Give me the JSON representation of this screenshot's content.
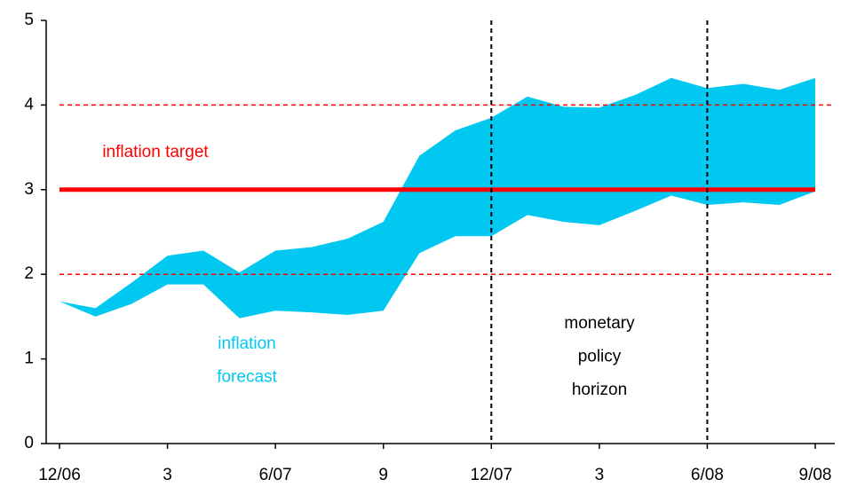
{
  "chart_data": {
    "type": "band",
    "categories": [
      "12/06",
      null,
      null,
      "3",
      null,
      null,
      "6/07",
      null,
      null,
      "9",
      null,
      null,
      "12/07",
      null,
      null,
      "3",
      null,
      null,
      "6/08",
      null,
      null,
      "9/08"
    ],
    "band": {
      "color": "#00c8f0",
      "upper": [
        1.68,
        1.6,
        1.9,
        2.22,
        2.28,
        2.02,
        2.28,
        2.32,
        2.42,
        2.62,
        3.4,
        3.7,
        3.85,
        4.1,
        3.98,
        3.97,
        4.12,
        4.32,
        4.2,
        4.25,
        4.18,
        4.32
      ],
      "lower": [
        1.68,
        1.5,
        1.65,
        1.88,
        1.88,
        1.48,
        1.57,
        1.55,
        1.52,
        1.57,
        2.25,
        2.45,
        2.45,
        2.7,
        2.62,
        2.58,
        2.75,
        2.93,
        2.82,
        2.85,
        2.82,
        2.98
      ]
    },
    "ylim": [
      0,
      5
    ],
    "yticks": [
      0,
      1,
      2,
      3,
      4,
      5
    ],
    "hlines": [
      {
        "value": 3,
        "color": "#ff0000",
        "style": "solid"
      },
      {
        "value": 2,
        "color": "#ff0000",
        "style": "dashed"
      },
      {
        "value": 4,
        "color": "#ff0000",
        "style": "dashed"
      }
    ],
    "vlines": [
      {
        "category": "12/07",
        "color": "#000000",
        "style": "dashed"
      },
      {
        "category": "6/08",
        "color": "#000000",
        "style": "dashed"
      }
    ],
    "annotations": [
      {
        "lines": [
          "inflation target"
        ],
        "color": "#ff0000"
      },
      {
        "lines": [
          "inflation",
          "forecast"
        ],
        "color": "#00c8f0"
      },
      {
        "lines": [
          "monetary",
          "policy",
          "horizon"
        ],
        "color": "#000000"
      }
    ]
  }
}
